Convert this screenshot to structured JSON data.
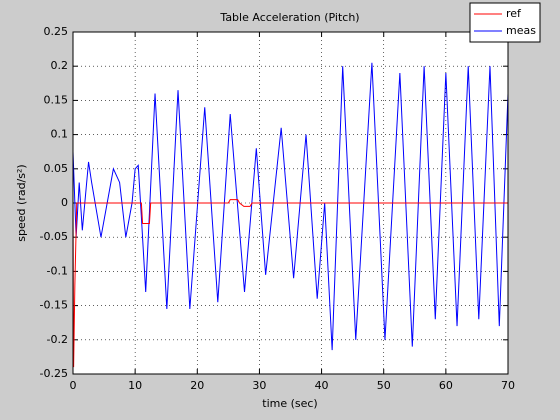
{
  "chart_data": {
    "type": "line",
    "title": "Table Acceleration (Pitch)",
    "x_label": "time (sec)",
    "y_label": "speed (rad/s²)",
    "xlim": [
      0,
      70
    ],
    "xticks": [
      0,
      10,
      20,
      30,
      40,
      50,
      60,
      70
    ],
    "ylim": [
      -0.25,
      0.25
    ],
    "yticks": [
      -0.25,
      -0.2,
      -0.15,
      -0.1,
      -0.05,
      0,
      0.05,
      0.1,
      0.15,
      0.2,
      0.25
    ],
    "grid": true,
    "legend": "top-right",
    "series": [
      {
        "name": "ref",
        "color": "#ff0000",
        "x": [
          0,
          0.1,
          0.3,
          0.6,
          11,
          11.2,
          12.3,
          12.5,
          25,
          25.3,
          26.5,
          26.8,
          27.5,
          28.5,
          28.8,
          70
        ],
        "values": [
          0,
          -0.24,
          -0.12,
          0,
          0,
          -0.03,
          -0.03,
          0,
          0,
          0.005,
          0.005,
          0,
          -0.005,
          -0.005,
          0,
          0
        ]
      },
      {
        "name": "meas",
        "color": "#0000ff",
        "x": [
          0,
          0.5,
          1,
          1.5,
          2.5,
          3,
          4.5,
          5.5,
          6.5,
          7.5,
          8.5,
          9.5,
          10,
          10.5,
          11,
          11.7,
          13.2,
          15.1,
          16.9,
          18.8,
          21.2,
          23.3,
          25.3,
          27.6,
          29.5,
          31,
          33.5,
          35.5,
          37.5,
          39.3,
          40.5,
          41.7,
          43.4,
          45.5,
          48.1,
          50.2,
          52.6,
          54.6,
          56.5,
          58.3,
          60,
          61.8,
          63.6,
          65.3,
          67.1,
          68.6,
          70
        ],
        "values": [
          0.075,
          -0.05,
          0.03,
          -0.04,
          0.06,
          0.03,
          -0.05,
          0,
          0.05,
          0.03,
          -0.05,
          0,
          0.05,
          0.055,
          -0.02,
          -0.13,
          0.16,
          -0.155,
          0.165,
          -0.155,
          0.14,
          -0.145,
          0.13,
          -0.13,
          0.08,
          -0.105,
          0.11,
          -0.11,
          0.1,
          -0.14,
          0,
          -0.215,
          0.2,
          -0.2,
          0.205,
          -0.2,
          0.19,
          -0.21,
          0.2,
          -0.17,
          0.19,
          -0.18,
          0.2,
          -0.17,
          0.2,
          -0.18,
          0.16
        ]
      }
    ]
  }
}
